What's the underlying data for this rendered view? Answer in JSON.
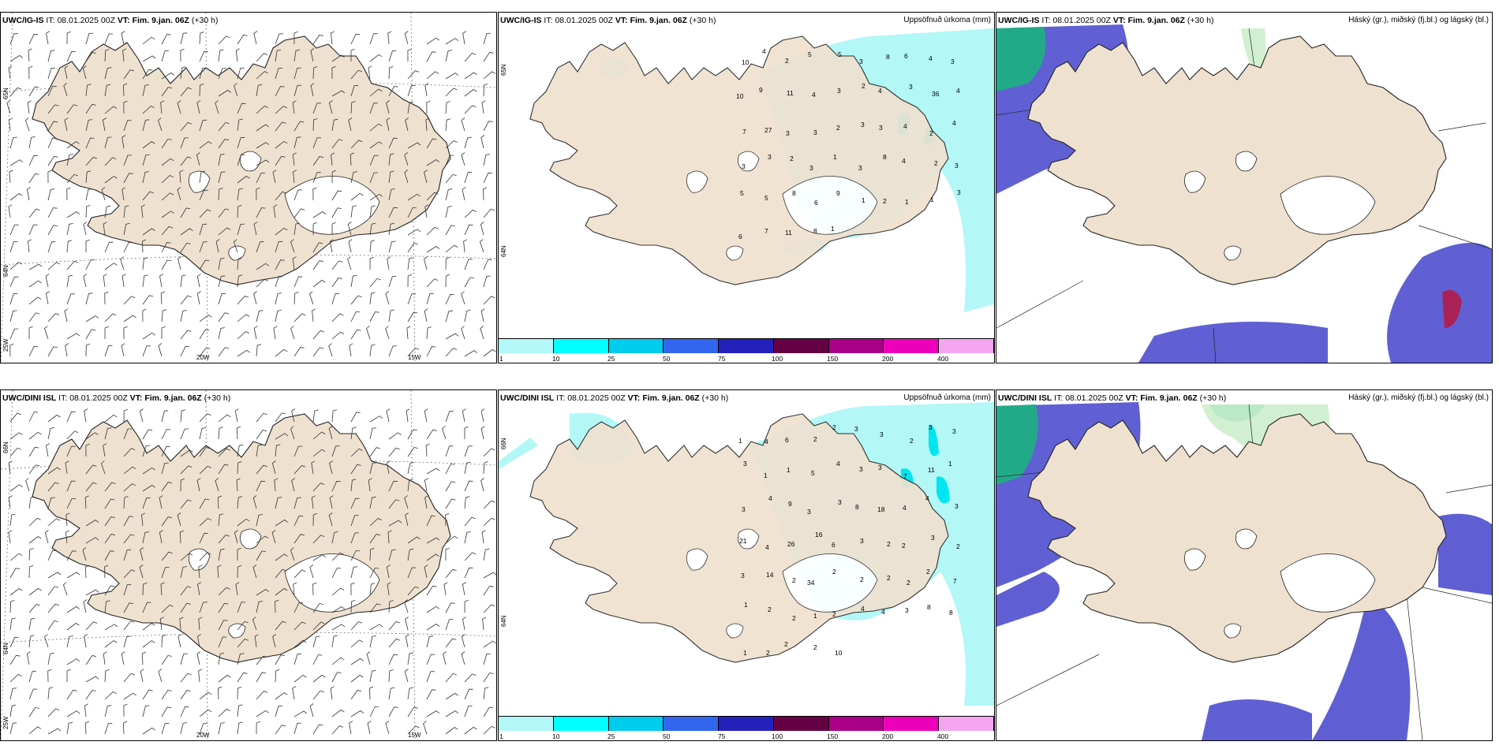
{
  "panels": {
    "wind_top": {
      "model": "UWC/IG-IS",
      "it": "08.01.2025 00Z",
      "vt": "Fim. 9.jan. 06Z",
      "lead": "(+30 h)",
      "right": ""
    },
    "precip_top": {
      "model": "UWC/IG-IS",
      "it": "08.01.2025 00Z",
      "vt": "Fim. 9.jan. 06Z",
      "lead": "(+30 h)",
      "right": "Uppsöfnuð úrkoma (mm)"
    },
    "cloud_top": {
      "model": "UWC/IG-IS",
      "it": "08.01.2025 00Z",
      "vt": "Fim. 9.jan. 06Z",
      "lead": "(+30 h)",
      "right": "Háský (gr.), miðský (fj.bl.) og lágský (bl.)"
    },
    "wind_bot": {
      "model": "UWC/DINI ISL",
      "it": "08.01.2025 00Z",
      "vt": "Fim. 9.jan. 06Z",
      "lead": "(+30 h)",
      "right": ""
    },
    "precip_bot": {
      "model": "UWC/DINI ISL",
      "it": "08.01.2025 00Z",
      "vt": "Fim. 9.jan. 06Z",
      "lead": "(+30 h)",
      "right": "Uppsöfnuð úrkoma (mm)"
    },
    "cloud_bot": {
      "model": "UWC/DINI ISL",
      "it": "08.01.2025 00Z",
      "vt": "Fim. 9.jan. 06Z",
      "lead": "(+30 h)",
      "right": "Háský (gr.), miðský (fj.bl.) og lágský (bl.)"
    }
  },
  "labels": {
    "it": "IT:",
    "vt": "VT:"
  },
  "axes": {
    "lon_20": "20W",
    "lon_15": "15W",
    "lon_25": "25W",
    "lat_65": "65N",
    "lat_64": "64N",
    "lat_66": "66N"
  },
  "colorbar": {
    "ticks": [
      "1",
      "10",
      "25",
      "50",
      "75",
      "100",
      "150",
      "200",
      "400"
    ],
    "colors": [
      "#b3f7f7",
      "#00ffff",
      "#00ccee",
      "#3366ee",
      "#2222bb",
      "#660044",
      "#aa0088",
      "#ee00bb",
      "#f5a6f0"
    ]
  },
  "precip_top_values": [
    "10",
    "4",
    "2",
    "5",
    "5",
    "3",
    "8",
    "6",
    "4",
    "3",
    "10",
    "9",
    "11",
    "4",
    "3",
    "2",
    "4",
    "3",
    "36",
    "4",
    "7",
    "27",
    "3",
    "3",
    "2",
    "3",
    "3",
    "4",
    "2",
    "4",
    "3",
    "3",
    "2",
    "3",
    "1",
    "3",
    "8",
    "4",
    "2",
    "3",
    "5",
    "5",
    "8",
    "6",
    "9",
    "1",
    "2",
    "1",
    "1",
    "3",
    "6",
    "7",
    "11",
    "8",
    "1"
  ],
  "precip_bot_values": [
    "1",
    "4",
    "6",
    "2",
    "2",
    "3",
    "3",
    "2",
    "3",
    "3",
    "3",
    "1",
    "1",
    "5",
    "4",
    "3",
    "3",
    "7",
    "11",
    "1",
    "3",
    "4",
    "9",
    "3",
    "3",
    "8",
    "18",
    "4",
    "4",
    "3",
    "21",
    "4",
    "26",
    "16",
    "6",
    "3",
    "2",
    "2",
    "3",
    "2",
    "3",
    "14",
    "2",
    "34",
    "2",
    "2",
    "2",
    "2",
    "2",
    "7",
    "1",
    "2",
    "2",
    "1",
    "2",
    "4",
    "4",
    "3",
    "8",
    "8",
    "1",
    "2",
    "2",
    "2",
    "10"
  ]
}
